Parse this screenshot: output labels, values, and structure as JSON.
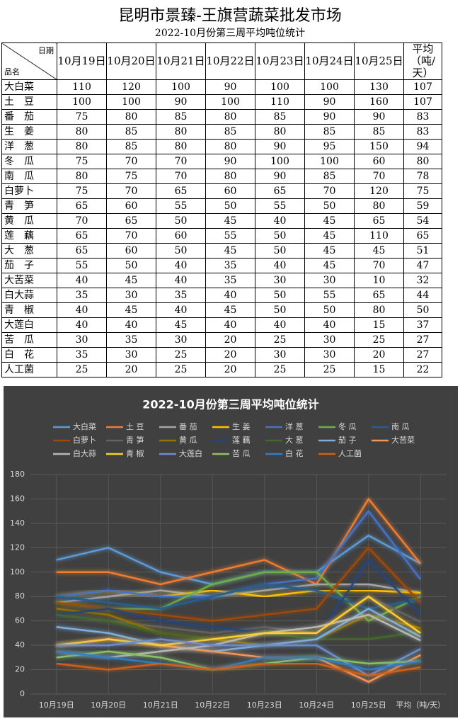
{
  "header": {
    "title": "昆明市景臻-王旗营蔬菜批发市场",
    "subtitle": "2022-10月份第三周平均吨位统计"
  },
  "table": {
    "corner_top": "日期",
    "corner_bottom": "品名",
    "columns": [
      "10月19日",
      "10月20日",
      "10月21日",
      "10月22日",
      "10月23日",
      "10月24日",
      "10月25日",
      "平均（吨/天）"
    ],
    "rows": [
      [
        "大白菜",
        110,
        120,
        100,
        90,
        100,
        100,
        130,
        107
      ],
      [
        "土　豆",
        100,
        100,
        90,
        100,
        110,
        90,
        160,
        107
      ],
      [
        "番　茄",
        75,
        80,
        85,
        80,
        85,
        90,
        90,
        83
      ],
      [
        "生　姜",
        80,
        85,
        80,
        85,
        80,
        85,
        85,
        83
      ],
      [
        "洋　葱",
        80,
        85,
        80,
        80,
        90,
        95,
        150,
        94
      ],
      [
        "冬　瓜",
        75,
        70,
        70,
        90,
        100,
        100,
        60,
        80
      ],
      [
        "南　瓜",
        80,
        75,
        70,
        80,
        90,
        85,
        70,
        78
      ],
      [
        "白萝卜",
        75,
        70,
        65,
        60,
        65,
        70,
        120,
        75
      ],
      [
        "青　笋",
        65,
        60,
        55,
        50,
        55,
        50,
        80,
        59
      ],
      [
        "黄　瓜",
        70,
        65,
        50,
        45,
        40,
        45,
        65,
        54
      ],
      [
        "莲　藕",
        65,
        70,
        60,
        55,
        50,
        45,
        110,
        65
      ],
      [
        "大　葱",
        65,
        60,
        50,
        45,
        50,
        45,
        45,
        51
      ],
      [
        "茄　子",
        55,
        50,
        40,
        35,
        40,
        45,
        70,
        47
      ],
      [
        "大苦菜",
        40,
        45,
        40,
        35,
        30,
        30,
        10,
        32
      ],
      [
        "白大蒜",
        35,
        30,
        35,
        40,
        50,
        55,
        65,
        44
      ],
      [
        "青　椒",
        40,
        45,
        40,
        45,
        50,
        50,
        80,
        50
      ],
      [
        "大莲白",
        40,
        40,
        45,
        40,
        40,
        40,
        15,
        37
      ],
      [
        "苦　瓜",
        30,
        35,
        30,
        20,
        25,
        30,
        25,
        27
      ],
      [
        "白　花",
        35,
        30,
        25,
        20,
        30,
        30,
        20,
        27
      ],
      [
        "人工菌",
        25,
        20,
        25,
        20,
        25,
        25,
        15,
        22
      ]
    ]
  },
  "chart_data": {
    "type": "line",
    "title": "2022-10月份第三周平均吨位统计",
    "categories": [
      "10月19日",
      "10月20日",
      "10月21日",
      "10月22日",
      "10月23日",
      "10月24日",
      "10月25日",
      "平均（吨/天）"
    ],
    "ylim": [
      0,
      180
    ],
    "yticks": [
      0,
      20,
      40,
      60,
      80,
      100,
      120,
      140,
      160,
      180
    ],
    "grid": true,
    "legend": "top",
    "series": [
      {
        "name": "大白菜",
        "color": "#5b9bd5",
        "values": [
          110,
          120,
          100,
          90,
          100,
          100,
          130,
          107
        ]
      },
      {
        "name": "土 豆",
        "color": "#ed7d31",
        "values": [
          100,
          100,
          90,
          100,
          110,
          90,
          160,
          107
        ]
      },
      {
        "name": "番 茄",
        "color": "#a5a5a5",
        "values": [
          75,
          80,
          85,
          80,
          85,
          90,
          90,
          83
        ]
      },
      {
        "name": "生 姜",
        "color": "#ffc000",
        "values": [
          80,
          85,
          80,
          85,
          80,
          85,
          85,
          83
        ]
      },
      {
        "name": "洋 葱",
        "color": "#4472c4",
        "values": [
          80,
          85,
          80,
          80,
          90,
          95,
          150,
          94
        ]
      },
      {
        "name": "冬 瓜",
        "color": "#70ad47",
        "values": [
          75,
          70,
          70,
          90,
          100,
          100,
          60,
          80
        ]
      },
      {
        "name": "南 瓜",
        "color": "#255e91",
        "values": [
          80,
          75,
          70,
          80,
          90,
          85,
          70,
          78
        ]
      },
      {
        "name": "白萝卜",
        "color": "#9e480e",
        "values": [
          75,
          70,
          65,
          60,
          65,
          70,
          120,
          75
        ]
      },
      {
        "name": "青 笋",
        "color": "#636363",
        "values": [
          65,
          60,
          55,
          50,
          55,
          50,
          80,
          59
        ]
      },
      {
        "name": "黄 瓜",
        "color": "#997300",
        "values": [
          70,
          65,
          50,
          45,
          40,
          45,
          65,
          54
        ]
      },
      {
        "name": "莲 藕",
        "color": "#264478",
        "values": [
          65,
          70,
          60,
          55,
          50,
          45,
          110,
          65
        ]
      },
      {
        "name": "大 葱",
        "color": "#43682b",
        "values": [
          65,
          60,
          50,
          45,
          50,
          45,
          45,
          51
        ]
      },
      {
        "name": "茄 子",
        "color": "#7cafdd",
        "values": [
          55,
          50,
          40,
          35,
          40,
          45,
          70,
          47
        ]
      },
      {
        "name": "大苦菜",
        "color": "#f1975a",
        "values": [
          40,
          45,
          40,
          35,
          30,
          30,
          10,
          32
        ]
      },
      {
        "name": "白大蒜",
        "color": "#b7b7b7",
        "values": [
          35,
          30,
          35,
          40,
          50,
          55,
          65,
          44
        ]
      },
      {
        "name": "青 椒",
        "color": "#ffcd33",
        "values": [
          40,
          45,
          40,
          45,
          50,
          50,
          80,
          50
        ]
      },
      {
        "name": "大莲白",
        "color": "#698ed0",
        "values": [
          40,
          40,
          45,
          40,
          40,
          40,
          15,
          37
        ]
      },
      {
        "name": "苦 瓜",
        "color": "#8cc168",
        "values": [
          30,
          35,
          30,
          20,
          25,
          30,
          25,
          27
        ]
      },
      {
        "name": "白 花",
        "color": "#327dc2",
        "values": [
          35,
          30,
          25,
          20,
          30,
          30,
          20,
          27
        ]
      },
      {
        "name": "人工菌",
        "color": "#d26012",
        "values": [
          25,
          20,
          25,
          20,
          25,
          25,
          15,
          22
        ]
      }
    ]
  }
}
